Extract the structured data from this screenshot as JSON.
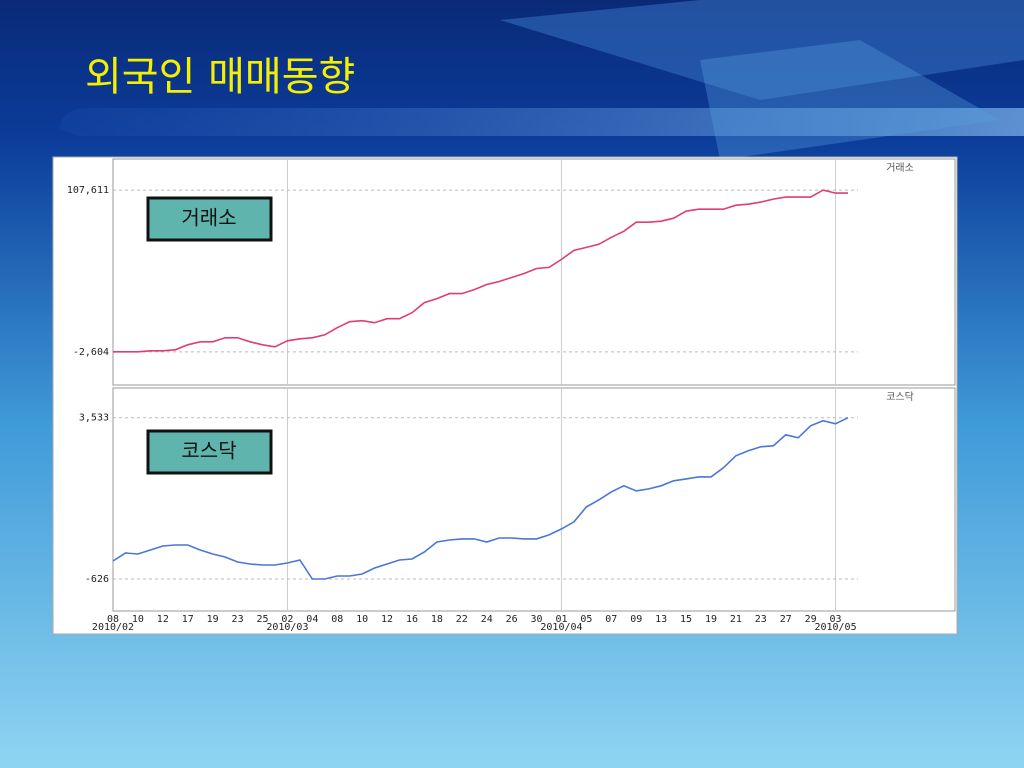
{
  "slide": {
    "title": "외국인 매매동향"
  },
  "chart_data": {
    "type": "line",
    "categories": [
      "08",
      null,
      "10",
      null,
      "12",
      null,
      "17",
      null,
      "19",
      null,
      "23",
      null,
      "25",
      null,
      "02",
      null,
      "04",
      null,
      "08",
      null,
      "10",
      null,
      "12",
      null,
      "16",
      null,
      "18",
      null,
      "22",
      null,
      "24",
      null,
      "26",
      null,
      "30",
      null,
      "01",
      null,
      "05",
      null,
      "07",
      null,
      "09",
      null,
      "13",
      null,
      "15",
      null,
      "19",
      null,
      "21",
      null,
      "23",
      null,
      "27",
      null,
      "29",
      null,
      "03",
      null
    ],
    "month_labels": [
      {
        "category_index": 0,
        "label": "2010/02"
      },
      {
        "category_index": 14,
        "label": "2010/03"
      },
      {
        "category_index": 36,
        "label": "2010/04"
      },
      {
        "category_index": 58,
        "label": "2010/05"
      }
    ],
    "grid": true,
    "panels": [
      {
        "ylim": [
          -25200,
          128800
        ],
        "yticks": [
          {
            "value": -2604,
            "label": "-2,604"
          },
          {
            "value": 107611,
            "label": "107,611"
          }
        ],
        "series": [
          {
            "name": "거래소",
            "color": "#e03c78",
            "values": [
              -2604,
              -2604,
              -2604,
              -1919,
              -1919,
              -1235,
              2188,
              4242,
              4242,
              6980,
              6980,
              4242,
              2188,
              820,
              4927,
              6296,
              6980,
              9034,
              13827,
              17935,
              18619,
              17250,
              19988,
              19988,
              24096,
              30942,
              33680,
              37103,
              37103,
              39841,
              43264,
              45318,
              48056,
              50795,
              54218,
              54902,
              60379,
              66540,
              68594,
              70648,
              75440,
              79548,
              85709,
              85709,
              86394,
              88448,
              93240,
              94609,
              94609,
              94609,
              97347,
              98032,
              99401,
              101451,
              102819,
              102819,
              102819,
              107611,
              105557,
              105557
            ]
          }
        ]
      },
      {
        "ylim": [
          -1450,
          4300
        ],
        "yticks": [
          {
            "value": -626,
            "label": "-626"
          },
          {
            "value": 3533,
            "label": "3,533"
          }
        ],
        "series": [
          {
            "name": "코스닥",
            "color": "#4a76d6",
            "values": [
              -161,
              46,
              20,
              123,
              227,
              253,
              253,
              123,
              20,
              -57,
              -187,
              -238,
              -264,
              -264,
              -212,
              -135,
              -626,
              -626,
              -548,
              -548,
              -496,
              -341,
              -238,
              -135,
              -109,
              72,
              330,
              382,
              408,
              408,
              330,
              433,
              433,
              408,
              408,
              511,
              666,
              847,
              1234,
              1415,
              1622,
              1777,
              1647,
              1699,
              1777,
              1906,
              1957,
              2009,
              2009,
              2242,
              2552,
              2681,
              2784,
              2810,
              3094,
              3016,
              3326,
              3456,
              3378,
              3533
            ]
          }
        ]
      }
    ]
  }
}
